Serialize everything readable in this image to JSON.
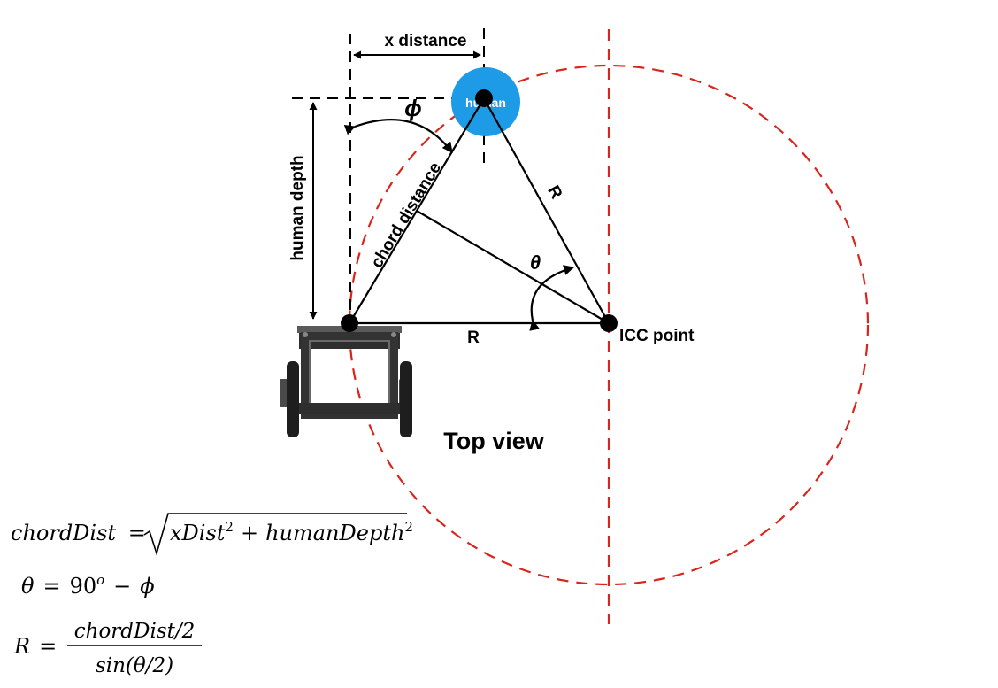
{
  "labels": {
    "x_distance": "x distance",
    "human_depth": "human depth",
    "chord_distance": "chord distance",
    "phi": "ϕ",
    "theta": "θ",
    "R_slant": "R",
    "R_base": "R",
    "human": "human",
    "icc_point": "ICC point",
    "top_view": "Top view"
  },
  "equations": {
    "eq1": {
      "lhs": "chordDist",
      "eq": "=",
      "radicand_a": "xDist",
      "exp_a": "2",
      "plus": "+",
      "radicand_b": "humanDepth",
      "exp_b": "2"
    },
    "eq2": {
      "lhs": "θ",
      "eq": "=",
      "num": "90",
      "sup": "o",
      "minus": "−",
      "rhs": "ϕ"
    },
    "eq3": {
      "lhs": "R",
      "eq": "=",
      "numerator": "chordDist/2",
      "denominator": "sin(θ/2)"
    }
  },
  "colors": {
    "human_circle": "#1E9BE6",
    "circle_dash": "#D9251C",
    "line": "#000000"
  }
}
